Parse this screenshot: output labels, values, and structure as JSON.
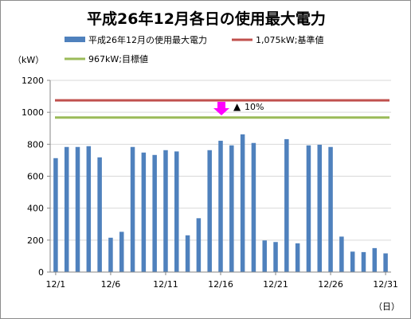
{
  "chart_data": {
    "type": "bar",
    "title": "平成26年12月各日の使用最大電力",
    "ylabel": "（kW）",
    "xlabel": "（日）",
    "ylim": [
      0,
      1200
    ],
    "yticks": [
      0,
      200,
      400,
      600,
      800,
      1000,
      1200
    ],
    "categories": [
      "12/1",
      "12/2",
      "12/3",
      "12/4",
      "12/5",
      "12/6",
      "12/7",
      "12/8",
      "12/9",
      "12/10",
      "12/11",
      "12/12",
      "12/13",
      "12/14",
      "12/15",
      "12/16",
      "12/17",
      "12/18",
      "12/19",
      "12/20",
      "12/21",
      "12/22",
      "12/23",
      "12/24",
      "12/25",
      "12/26",
      "12/27",
      "12/28",
      "12/29",
      "12/30",
      "12/31"
    ],
    "tick_labels": [
      "12/1",
      "12/6",
      "12/11",
      "12/16",
      "12/21",
      "12/26",
      "12/31"
    ],
    "series": [
      {
        "name": "平成26年12月の使用最大電力",
        "color": "#4f81bd",
        "values": [
          713,
          783,
          783,
          788,
          718,
          215,
          252,
          783,
          748,
          733,
          763,
          755,
          230,
          337,
          763,
          822,
          793,
          862,
          808,
          198,
          188,
          832,
          180,
          793,
          797,
          783,
          222,
          128,
          125,
          150,
          117
        ]
      }
    ],
    "lines": [
      {
        "name": "1,075kW;基準値",
        "value": 1075,
        "color": "#c0504d"
      },
      {
        "name": "967kW;目標値",
        "value": 967,
        "color": "#9bbb59"
      }
    ],
    "annotation": {
      "text": "10%",
      "marker": "▲",
      "arrow_color": "#ff00ff"
    },
    "grid": "horizontal",
    "legend": "top"
  }
}
